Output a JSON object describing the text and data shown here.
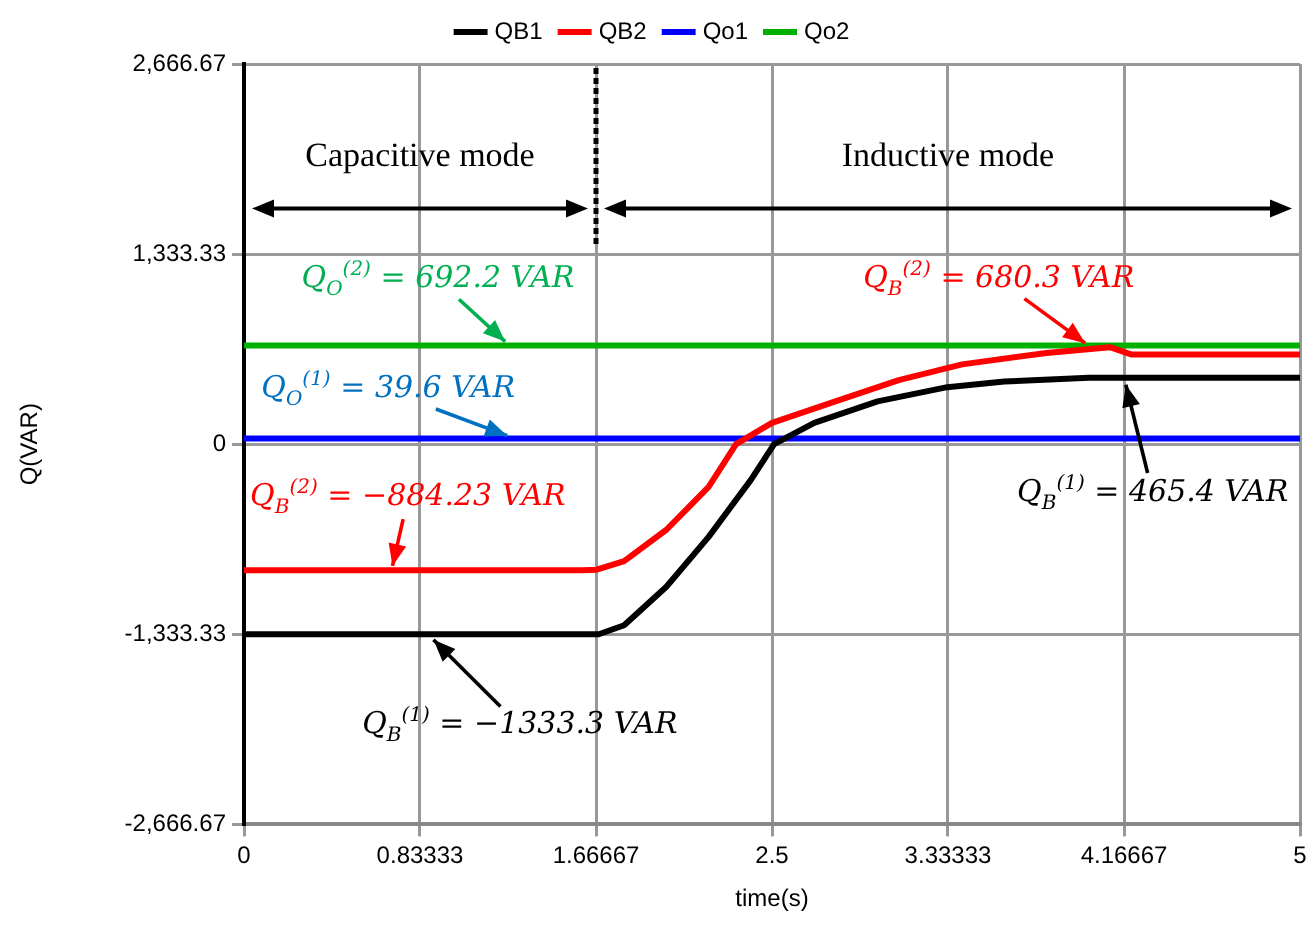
{
  "chart_data": {
    "type": "line",
    "xlabel": "time(s)",
    "ylabel": "Q(VAR)",
    "xlim": [
      0,
      5
    ],
    "xticks": [
      0,
      0.83333,
      1.66667,
      2.5,
      3.33333,
      4.16667,
      5
    ],
    "ylim": [
      -2666.67,
      2666.67
    ],
    "yticks": [
      {
        "value": -2666.67,
        "label": "-2,666.67"
      },
      {
        "value": -1333.33,
        "label": "-1,333.33"
      },
      0,
      {
        "value": 1333.33,
        "label": "1,333.33"
      },
      {
        "value": 2666.67,
        "label": "2,666.67"
      }
    ],
    "grid": true,
    "legend": "top",
    "marker": "none",
    "line_style": "solid",
    "series": [
      {
        "name": "QB1",
        "color": "#000000",
        "x": [
          0,
          1.68,
          1.8,
          2.0,
          2.2,
          2.4,
          2.51,
          2.7,
          3.0,
          3.33,
          3.6,
          4.0,
          5
        ],
        "values": [
          -1333.3,
          -1333.3,
          -1270,
          -1000,
          -650,
          -250,
          0,
          150,
          300,
          400,
          440,
          465.4,
          465.4
        ]
      },
      {
        "name": "QB2",
        "color": "#ff0000",
        "x": [
          0,
          1.6,
          1.67,
          1.8,
          2.0,
          2.2,
          2.33,
          2.5,
          2.8,
          3.1,
          3.4,
          3.8,
          4.1,
          4.2,
          5
        ],
        "values": [
          -884.23,
          -884.23,
          -880,
          -820,
          -600,
          -300,
          0,
          150,
          300,
          450,
          560,
          640,
          680.3,
          630,
          630
        ]
      },
      {
        "name": "Qo1",
        "color": "#0000ff",
        "x": [
          0,
          5
        ],
        "values": [
          39.6,
          39.6
        ]
      },
      {
        "name": "Qo2",
        "color": "#00b000",
        "x": [
          0,
          5
        ],
        "values": [
          692.2,
          692.2
        ]
      }
    ],
    "annotations": [
      "Capacitive mode",
      "Inductive mode",
      {
        "text": "Q$_{O}$$^{(2)}$ = 692.2 VAR",
        "x": 1.25,
        "y": 692.2
      },
      {
        "text": "Q$_{O}$$^{(1)}$ = 39.6 VAR",
        "x": 1.27,
        "y": 39.6
      },
      {
        "text": "Q$_{B}$$^{(2)}$ = −884.23 VAR",
        "x": 0.7,
        "y": -884.23
      },
      {
        "text": "Q$_{B}$$^{(1)}$ = −1333.3 VAR",
        "x": 0.88,
        "y": -1333.3
      },
      {
        "text": "Q$_{B}$$^{(2)}$ = 680.3 VAR",
        "x": 4.0,
        "y": 680.3
      },
      {
        "text": "Q$_{B}$$^{(1)}$ = 465.4 VAR",
        "x": 4.17,
        "y": 465.4
      }
    ]
  }
}
